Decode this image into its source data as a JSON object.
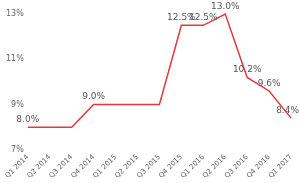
{
  "chart_data": {
    "type": "line",
    "categories": [
      "Q1 2014",
      "Q2 2014",
      "Q3 2014",
      "Q4 2014",
      "Q1 2015",
      "Q2 2015",
      "Q3 2015",
      "Q4 2015",
      "Q1 2016",
      "Q2 2016",
      "Q3 2016",
      "Q4 2016",
      "Q1 2017"
    ],
    "values": [
      8.0,
      8.0,
      8.0,
      9.0,
      9.0,
      9.0,
      9.0,
      12.5,
      12.5,
      13.0,
      10.2,
      9.6,
      8.4
    ],
    "value_labels": [
      "8.0%",
      null,
      null,
      "9.0%",
      null,
      null,
      null,
      "12.5%",
      "12.5%",
      "13.0%",
      "10.2%",
      "9.6%",
      "8.4%"
    ],
    "data_labels": true,
    "color": "#e0393e",
    "ylim": [
      7,
      13
    ],
    "yticks": [
      {
        "value": 7,
        "label": "7%"
      },
      {
        "value": 9,
        "label": "9%"
      },
      {
        "value": 11,
        "label": "11%"
      },
      {
        "value": 13,
        "label": "13%"
      }
    ],
    "grid": false
  }
}
